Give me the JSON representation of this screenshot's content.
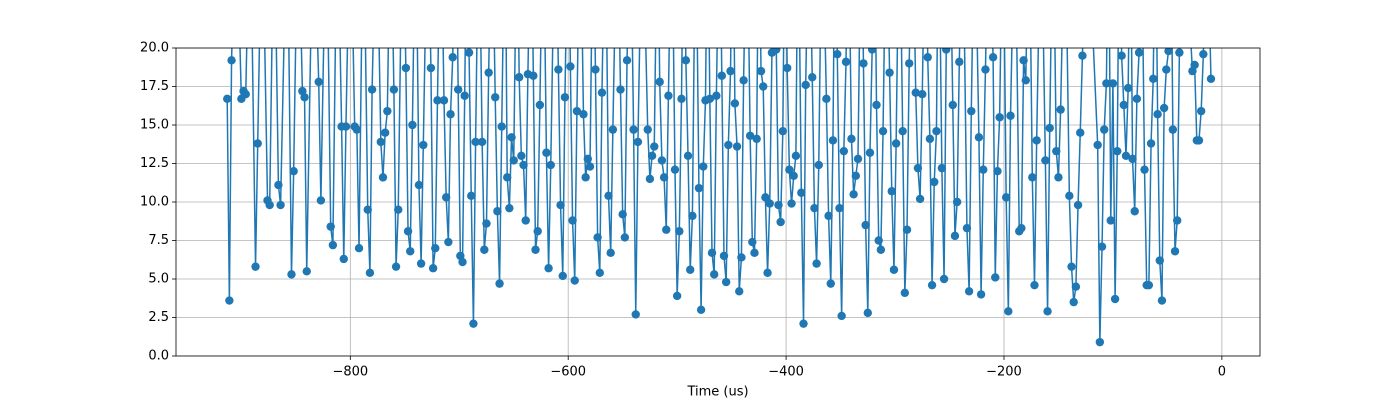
{
  "chart_data": {
    "type": "line",
    "xlabel": "Time (us)",
    "xlim": [
      -960,
      35
    ],
    "ylim": [
      0,
      20
    ],
    "xticks": [
      {
        "value": -800,
        "label": "−800"
      },
      {
        "value": -600,
        "label": "−600"
      },
      {
        "value": -400,
        "label": "−400"
      },
      {
        "value": -200,
        "label": "−200"
      },
      {
        "value": 0,
        "label": "0"
      }
    ],
    "yticks": [
      {
        "value": 0,
        "label": "0.0"
      },
      2.5,
      {
        "value": 5,
        "label": "5.0"
      },
      7.5,
      {
        "value": 10,
        "label": "10.0"
      },
      12.5,
      {
        "value": 15,
        "label": "15.0"
      },
      17.5,
      {
        "value": 20,
        "label": "20.0"
      }
    ],
    "grid": true,
    "x": [
      -913,
      -911,
      -909,
      -905,
      -900,
      -898,
      -896,
      -892,
      -887,
      -885,
      -881,
      -876,
      -874,
      -870,
      -866,
      -864,
      -858,
      -854,
      -852,
      -848,
      -844,
      -842,
      -840,
      -834,
      -829,
      -827,
      -822,
      -818,
      -816,
      -812,
      -808,
      -806,
      -804,
      -800,
      -796,
      -794,
      -792,
      -788,
      -784,
      -782,
      -780,
      -776,
      -772,
      -770,
      -768,
      -766,
      -763,
      -760,
      -758,
      -756,
      -752,
      -749,
      -747,
      -745,
      -743,
      -740,
      -737,
      -735,
      -733,
      -729,
      -726,
      -724,
      -722,
      -720,
      -717,
      -714,
      -712,
      -710,
      -708,
      -706,
      -703,
      -701,
      -699,
      -697,
      -695,
      -693,
      -691,
      -689,
      -687,
      -685,
      -682,
      -679,
      -677,
      -675,
      -673,
      -670,
      -667,
      -665,
      -663,
      -661,
      -658,
      -656,
      -654,
      -652,
      -650,
      -647,
      -645,
      -643,
      -641,
      -639,
      -637,
      -634,
      -632,
      -630,
      -628,
      -626,
      -623,
      -620,
      -618,
      -616,
      -612,
      -609,
      -607,
      -605,
      -603,
      -600,
      -598,
      -596,
      -594,
      -592,
      -589,
      -586,
      -584,
      -582,
      -580,
      -577,
      -575,
      -573,
      -571,
      -569,
      -566,
      -563,
      -561,
      -559,
      -555,
      -552,
      -550,
      -548,
      -546,
      -543,
      -540,
      -538,
      -536,
      -532,
      -527,
      -525,
      -523,
      -521,
      -518,
      -516,
      -514,
      -512,
      -510,
      -508,
      -505,
      -502,
      -500,
      -498,
      -496,
      -494,
      -492,
      -490,
      -488,
      -486,
      -483,
      -480,
      -478,
      -476,
      -474,
      -472,
      -470,
      -468,
      -466,
      -464,
      -461,
      -459,
      -457,
      -455,
      -453,
      -451,
      -449,
      -447,
      -445,
      -443,
      -441,
      -439,
      -436,
      -433,
      -431,
      -429,
      -427,
      -425,
      -423,
      -421,
      -419,
      -417,
      -415,
      -413,
      -411,
      -409,
      -407,
      -405,
      -403,
      -401,
      -399,
      -397,
      -395,
      -393,
      -391,
      -389,
      -386,
      -384,
      -382,
      -379,
      -376,
      -374,
      -372,
      -370,
      -367,
      -363,
      -361,
      -359,
      -357,
      -355,
      -353,
      -351,
      -349,
      -347,
      -345,
      -343,
      -340,
      -338,
      -336,
      -334,
      -331,
      -329,
      -327,
      -325,
      -323,
      -321,
      -319,
      -317,
      -315,
      -313,
      -311,
      -308,
      -305,
      -303,
      -301,
      -299,
      -296,
      -293,
      -291,
      -289,
      -287,
      -284,
      -281,
      -279,
      -277,
      -275,
      -272,
      -270,
      -268,
      -266,
      -264,
      -262,
      -260,
      -257,
      -255,
      -253,
      -250,
      -247,
      -245,
      -243,
      -241,
      -238,
      -234,
      -232,
      -230,
      -227,
      -223,
      -221,
      -219,
      -217,
      -214,
      -210,
      -208,
      -206,
      -204,
      -201,
      -198,
      -196,
      -194,
      -190,
      -186,
      -184,
      -182,
      -180,
      -177,
      -174,
      -172,
      -170,
      -166,
      -162,
      -160,
      -158,
      -155,
      -152,
      -150,
      -148,
      -144,
      -140,
      -138,
      -136,
      -134,
      -132,
      -130,
      -128,
      -124,
      -114,
      -112,
      -110,
      -108,
      -106,
      -104,
      -102,
      -100,
      -98,
      -96,
      -94,
      -92,
      -90,
      -88,
      -86,
      -84,
      -82,
      -80,
      -78,
      -76,
      -74,
      -71,
      -69,
      -67,
      -65,
      -63,
      -61,
      -59,
      -57,
      -55,
      -53,
      -51,
      -49,
      -47,
      -45,
      -43,
      -41,
      -39,
      -36,
      -27,
      -25,
      -23,
      -21,
      -19,
      -17,
      -14,
      -10
    ],
    "series": [
      {
        "color": "#1f77b4",
        "values": [
          16.7,
          3.6,
          19.2,
          30,
          16.7,
          17.2,
          17.0,
          30,
          5.8,
          13.8,
          30,
          10.1,
          9.8,
          30,
          11.1,
          9.8,
          30,
          5.3,
          12.0,
          30,
          17.2,
          16.8,
          5.5,
          30,
          17.8,
          10.1,
          30,
          8.4,
          7.2,
          30,
          14.9,
          6.3,
          14.9,
          30,
          14.9,
          14.7,
          7.0,
          30,
          9.5,
          5.4,
          17.3,
          30,
          13.9,
          11.6,
          14.5,
          15.9,
          30,
          17.3,
          5.8,
          9.5,
          30,
          18.7,
          8.1,
          6.8,
          15.0,
          30,
          11.1,
          6.0,
          13.7,
          30,
          18.7,
          5.7,
          7.0,
          16.6,
          30,
          16.6,
          10.3,
          7.4,
          15.7,
          19.4,
          30,
          17.3,
          6.5,
          6.1,
          16.9,
          30,
          19.7,
          10.4,
          2.1,
          13.9,
          30,
          13.9,
          6.9,
          8.6,
          18.4,
          30,
          16.8,
          9.4,
          4.7,
          14.9,
          30,
          11.6,
          9.6,
          14.2,
          12.7,
          30,
          18.1,
          13.0,
          12.4,
          8.8,
          18.3,
          30,
          18.2,
          6.9,
          8.1,
          16.3,
          30,
          13.2,
          5.7,
          12.4,
          30,
          18.6,
          9.8,
          5.2,
          16.8,
          30,
          18.8,
          8.8,
          4.9,
          15.9,
          30,
          15.7,
          11.6,
          12.8,
          12.3,
          30,
          18.6,
          7.7,
          5.4,
          17.1,
          30,
          10.4,
          6.7,
          14.7,
          30,
          17.3,
          9.2,
          7.7,
          19.2,
          30,
          14.7,
          2.7,
          13.9,
          30,
          14.7,
          11.5,
          13.0,
          13.6,
          30,
          17.8,
          12.7,
          11.6,
          8.2,
          16.9,
          30,
          12.1,
          3.9,
          8.1,
          16.7,
          30,
          19.2,
          13.0,
          5.6,
          9.1,
          30,
          10.9,
          3.0,
          12.3,
          16.6,
          30,
          16.7,
          6.7,
          5.3,
          16.9,
          30,
          18.2,
          6.5,
          4.8,
          13.7,
          18.5,
          30,
          16.4,
          13.6,
          4.2,
          6.4,
          17.9,
          30,
          14.3,
          7.4,
          6.7,
          14.1,
          30,
          18.5,
          17.5,
          10.3,
          5.4,
          9.9,
          19.7,
          30,
          19.9,
          9.8,
          8.7,
          14.6,
          30,
          18.7,
          12.1,
          9.9,
          11.7,
          13.0,
          30,
          10.6,
          2.1,
          17.6,
          30,
          18.1,
          9.6,
          6.0,
          12.4,
          30,
          16.7,
          9.1,
          4.7,
          14.0,
          30,
          19.6,
          9.6,
          2.6,
          13.3,
          19.1,
          30,
          14.1,
          10.5,
          11.7,
          12.8,
          30,
          19.0,
          8.5,
          2.8,
          13.2,
          19.9,
          30,
          16.3,
          7.5,
          6.9,
          14.6,
          30,
          18.4,
          10.7,
          5.6,
          13.8,
          30,
          14.6,
          4.1,
          8.2,
          19.0,
          30,
          17.1,
          12.2,
          10.2,
          17.0,
          30,
          19.4,
          14.1,
          4.6,
          11.3,
          14.6,
          30,
          12.2,
          5.0,
          19.9,
          30,
          16.3,
          7.8,
          10.0,
          19.1,
          30,
          8.3,
          4.2,
          15.9,
          30,
          14.2,
          4.0,
          12.1,
          18.6,
          30,
          19.4,
          5.1,
          12.0,
          15.5,
          30,
          10.3,
          2.9,
          15.6,
          30,
          8.1,
          8.3,
          19.2,
          17.9,
          30,
          11.6,
          4.6,
          14.0,
          30,
          12.7,
          2.9,
          14.8,
          30,
          13.3,
          11.6,
          16.0,
          30,
          10.4,
          5.8,
          3.5,
          4.5,
          9.8,
          14.5,
          19.5,
          30,
          13.7,
          0.9,
          7.1,
          14.7,
          17.7,
          30,
          8.8,
          17.7,
          3.7,
          13.3,
          30,
          19.5,
          16.3,
          13.0,
          17.4,
          30,
          12.8,
          9.4,
          16.7,
          19.7,
          30,
          12.1,
          4.6,
          4.6,
          13.8,
          18.0,
          30,
          15.7,
          6.2,
          3.6,
          16.1,
          18.6,
          19.8,
          30,
          14.7,
          6.8,
          8.8,
          19.7,
          30,
          18.5,
          18.9,
          14.0,
          14.0,
          15.9,
          19.6,
          30,
          18.0
        ]
      }
    ]
  }
}
